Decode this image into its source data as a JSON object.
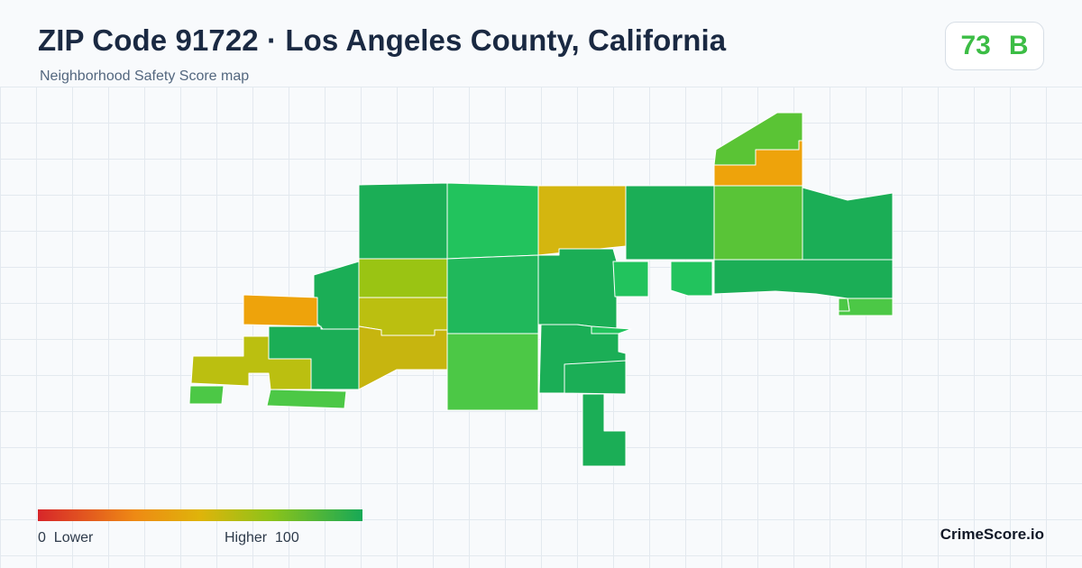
{
  "header": {
    "title": "ZIP Code 91722 · Los Angeles County, California",
    "subtitle": "Neighborhood Safety Score map"
  },
  "score": {
    "value": "73",
    "grade": "B",
    "color": "#3cbd45"
  },
  "legend": {
    "min_label": "0",
    "min_text": "Lower",
    "max_text": "Higher",
    "max_label": "100",
    "colors": [
      "#d7262a",
      "#ee8a14",
      "#dfb40a",
      "#8cc31a",
      "#17a956"
    ]
  },
  "brand": "CrimeScore.io",
  "map": {
    "regions": [
      {
        "id": "r1",
        "color": "#1bae56"
      },
      {
        "id": "r2",
        "color": "#22c35d"
      },
      {
        "id": "r3",
        "color": "#d4b60f"
      },
      {
        "id": "r4",
        "color": "#1bae56"
      },
      {
        "id": "r5",
        "color": "#59c437"
      },
      {
        "id": "r6",
        "color": "#1bae56"
      },
      {
        "id": "r7",
        "color": "#eea30b"
      },
      {
        "id": "r8",
        "color": "#5ac435"
      },
      {
        "id": "r9",
        "color": "#1bae56"
      },
      {
        "id": "r10",
        "color": "#9ac413"
      },
      {
        "id": "r11",
        "color": "#bbbf10"
      },
      {
        "id": "r12",
        "color": "#c7b50f"
      },
      {
        "id": "r13",
        "color": "#20b85b"
      },
      {
        "id": "r14",
        "color": "#1bae56"
      },
      {
        "id": "r15",
        "color": "#22c35d"
      },
      {
        "id": "r16",
        "color": "#22c35d"
      },
      {
        "id": "r17",
        "color": "#1bae56"
      },
      {
        "id": "r18",
        "color": "#1bae56"
      },
      {
        "id": "r19",
        "color": "#4cc846"
      },
      {
        "id": "r20",
        "color": "#eea30b"
      },
      {
        "id": "r21",
        "color": "#bbbf10"
      },
      {
        "id": "r22",
        "color": "#1bae56"
      },
      {
        "id": "r23",
        "color": "#4cc846"
      },
      {
        "id": "r24",
        "color": "#4cc846"
      },
      {
        "id": "r25",
        "color": "#4cc846"
      },
      {
        "id": "r26",
        "color": "#22c35d"
      },
      {
        "id": "r27",
        "color": "#1bae56"
      },
      {
        "id": "r28",
        "color": "#1bae56"
      },
      {
        "id": "r29",
        "color": "#4cc846"
      }
    ]
  }
}
